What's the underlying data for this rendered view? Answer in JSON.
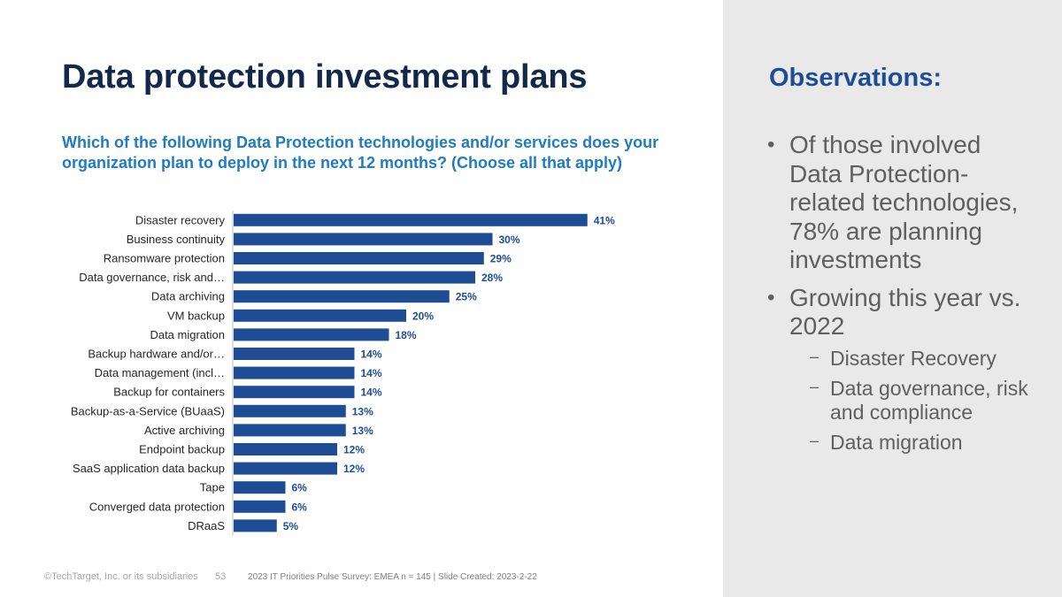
{
  "slide": {
    "title": "Data protection investment plans",
    "question": "Which of the following Data Protection technologies and/or services does your organization plan to deploy in the next 12 months? (Choose all that apply)"
  },
  "chart_data": {
    "type": "bar",
    "orientation": "horizontal",
    "categories": [
      "Disaster recovery",
      "Business continuity",
      "Ransomware protection",
      "Data governance, risk and…",
      "Data archiving",
      "VM backup",
      "Data migration",
      "Backup hardware and/or…",
      "Data management (incl…",
      "Backup for containers",
      "Backup-as-a-Service (BUaaS)",
      "Active archiving",
      "Endpoint backup",
      "SaaS application data backup",
      "Tape",
      "Converged data protection",
      "DRaaS"
    ],
    "values": [
      41,
      30,
      29,
      28,
      25,
      20,
      18,
      14,
      14,
      14,
      13,
      13,
      12,
      12,
      6,
      6,
      5
    ],
    "value_labels": [
      "41%",
      "30%",
      "29%",
      "28%",
      "25%",
      "20%",
      "18%",
      "14%",
      "14%",
      "14%",
      "13%",
      "13%",
      "12%",
      "12%",
      "6%",
      "6%",
      "5%"
    ],
    "unit": "%",
    "bar_color": "#1e4d96",
    "grid": false,
    "legend": "none"
  },
  "sidebar": {
    "title": "Observations:",
    "bullets": [
      {
        "text": "Of those involved Data Protection-related technologies, 78% are planning investments",
        "subs": []
      },
      {
        "text": "Growing this year vs. 2022",
        "subs": [
          "Disaster Recovery",
          "Data governance, risk and compliance",
          "Data migration"
        ]
      }
    ]
  },
  "footer": {
    "copyright": "©TechTarget,  Inc. or its subsidiaries",
    "page_number": "53",
    "source": "2023 IT Priorities Pulse Survey: EMEA  n = 145 | Slide Created: 2023-2-22"
  },
  "colors": {
    "title": "#13294b",
    "question": "#1f7bc2",
    "observations_title": "#1e4d96",
    "sidebar_bg": "#eae9e9"
  }
}
